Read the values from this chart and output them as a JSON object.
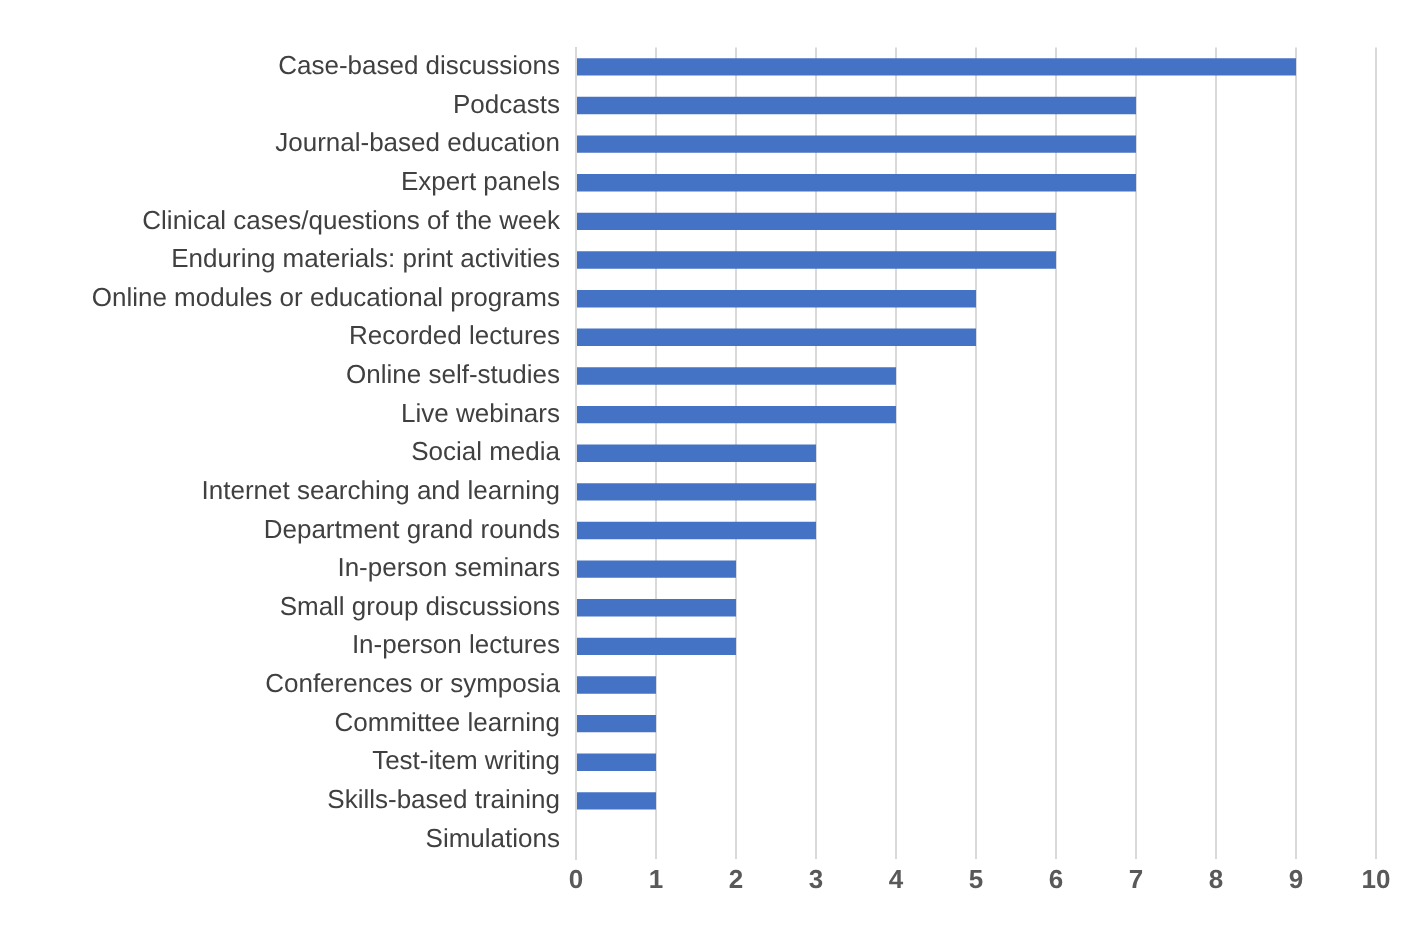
{
  "chart_data": {
    "type": "bar",
    "orientation": "horizontal",
    "categories": [
      "Case-based discussions",
      "Podcasts",
      "Journal-based education",
      "Expert panels",
      "Clinical cases/questions of the week",
      "Enduring materials: print activities",
      "Online modules or educational programs",
      "Recorded lectures",
      "Online self-studies",
      "Live webinars",
      "Social media",
      "Internet searching and learning",
      "Department grand rounds",
      "In-person seminars",
      "Small group discussions",
      "In-person lectures",
      "Conferences or symposia",
      "Committee learning",
      "Test-item writing",
      "Skills-based training",
      "Simulations"
    ],
    "values": [
      9,
      7,
      7,
      7,
      6,
      6,
      5,
      5,
      4,
      4,
      3,
      3,
      3,
      2,
      2,
      2,
      1,
      1,
      1,
      1,
      0
    ],
    "color": "#4472c4",
    "xlim": [
      0,
      10
    ],
    "xticks": [
      0,
      1,
      2,
      3,
      4,
      5,
      6,
      7,
      8,
      9,
      10
    ],
    "grid": "x",
    "legend": false
  }
}
